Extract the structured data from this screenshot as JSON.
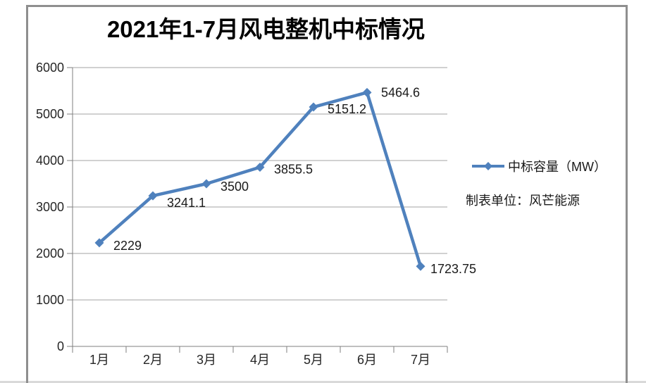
{
  "chart_data": {
    "type": "line",
    "title": "2021年1-7月风电整机中标情况",
    "categories": [
      "1月",
      "2月",
      "3月",
      "4月",
      "5月",
      "6月",
      "7月"
    ],
    "series": [
      {
        "name": "中标容量（MW）",
        "values": [
          2229,
          3241.1,
          3500,
          3855.5,
          5151.2,
          5464.6,
          1723.75
        ],
        "data_labels": [
          "2229",
          "3241.1",
          "3500",
          "3855.5",
          "5151.2",
          "5464.6",
          "1723.75"
        ]
      }
    ],
    "yticks": [
      "0",
      "1000",
      "2000",
      "3000",
      "4000",
      "5000",
      "6000"
    ],
    "ylim": [
      0,
      6000
    ],
    "xlabel": "",
    "ylabel": "",
    "grid": "horizontal",
    "legend_position": "right",
    "annotation": "制表单位：风芒能源",
    "marker": "diamond",
    "line_color": "#4F81BD",
    "gridline_color": "#a3a3a3",
    "axis_color": "#7f7f7f",
    "label_color": "#1a1a1a"
  }
}
